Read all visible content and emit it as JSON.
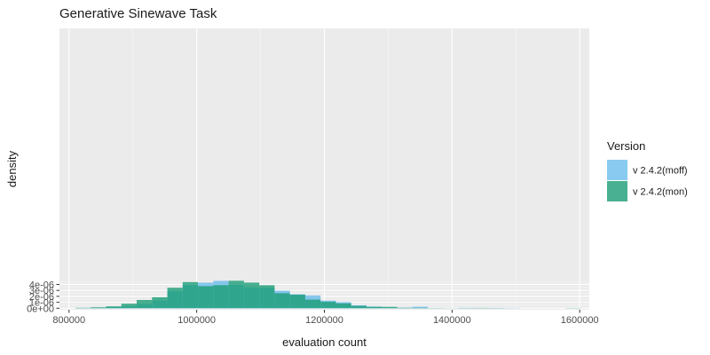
{
  "chart_data": {
    "type": "histogram",
    "title": "Generative Sinewave Task",
    "xlabel": "evaluation count",
    "ylabel": "density",
    "xlim": [
      785000,
      1615000
    ],
    "ylim": [
      -2.5e-07,
      4.7e-05
    ],
    "x_ticks": [
      800000,
      1000000,
      1200000,
      1400000,
      1600000
    ],
    "x_tick_labels": [
      "800000",
      "1000000",
      "1200000",
      "1400000",
      "1600000"
    ],
    "y_ticks": [
      0,
      1e-06,
      2e-06,
      3e-06,
      4e-06
    ],
    "y_tick_labels": [
      "0e+00",
      "1e-06",
      "2e-06",
      "3e-06",
      "4e-06"
    ],
    "bins": [
      [
        810000,
        834000
      ],
      [
        834000,
        858000
      ],
      [
        858000,
        882000
      ],
      [
        882000,
        906000
      ],
      [
        906000,
        930000
      ],
      [
        930000,
        954000
      ],
      [
        954000,
        978000
      ],
      [
        978000,
        1002000
      ],
      [
        1002000,
        1026000
      ],
      [
        1026000,
        1050000
      ],
      [
        1050000,
        1074000
      ],
      [
        1074000,
        1098000
      ],
      [
        1098000,
        1122000
      ],
      [
        1122000,
        1146000
      ],
      [
        1146000,
        1170000
      ],
      [
        1170000,
        1194000
      ],
      [
        1194000,
        1218000
      ],
      [
        1218000,
        1242000
      ],
      [
        1242000,
        1266000
      ],
      [
        1266000,
        1290000
      ],
      [
        1290000,
        1314000
      ],
      [
        1314000,
        1338000
      ],
      [
        1338000,
        1362000
      ],
      [
        1362000,
        1386000
      ],
      [
        1386000,
        1410000
      ],
      [
        1410000,
        1434000
      ],
      [
        1434000,
        1458000
      ],
      [
        1458000,
        1482000
      ],
      [
        1482000,
        1506000
      ],
      [
        1506000,
        1530000
      ],
      [
        1530000,
        1554000
      ],
      [
        1554000,
        1578000
      ],
      [
        1578000,
        1602000
      ]
    ],
    "series": [
      {
        "name": "v 2.4.2(moff)",
        "color": "#56B4E9",
        "values": [
          4e-08,
          1.3e-07,
          2e-07,
          3.1e-07,
          7.1e-07,
          1.28e-06,
          2.85e-06,
          3.88e-06,
          4.3e-06,
          4.6e-06,
          3.95e-06,
          3.5e-06,
          3.45e-06,
          2.95e-06,
          2.35e-06,
          2.15e-06,
          1.28e-06,
          1.02e-06,
          5e-07,
          2.8e-07,
          1.3e-07,
          1e-07,
          2.5e-07,
          3e-08,
          1e-08,
          6e-08,
          2e-08,
          5e-08,
          3e-08,
          0,
          0,
          0,
          0
        ]
      },
      {
        "name": "v 2.4.2(mon)",
        "color": "#1B9E77",
        "values": [
          7e-08,
          1.5e-07,
          3.2e-07,
          7.7e-07,
          1.39e-06,
          1.85e-06,
          3.45e-06,
          4.4e-06,
          3.71e-06,
          3.88e-06,
          4.62e-06,
          4.31e-06,
          3.87e-06,
          2.53e-06,
          2.27e-06,
          1.45e-06,
          1.09e-06,
          8.2e-07,
          4e-07,
          2.4e-07,
          2.3e-07,
          7e-08,
          6e-08,
          3e-08,
          2e-08,
          3e-08,
          6e-08,
          3e-08,
          1e-08,
          0,
          0,
          0,
          4e-08
        ]
      }
    ],
    "legend": {
      "title": "Version",
      "position": "right"
    },
    "background": "#EBEBEB",
    "grid": true
  }
}
